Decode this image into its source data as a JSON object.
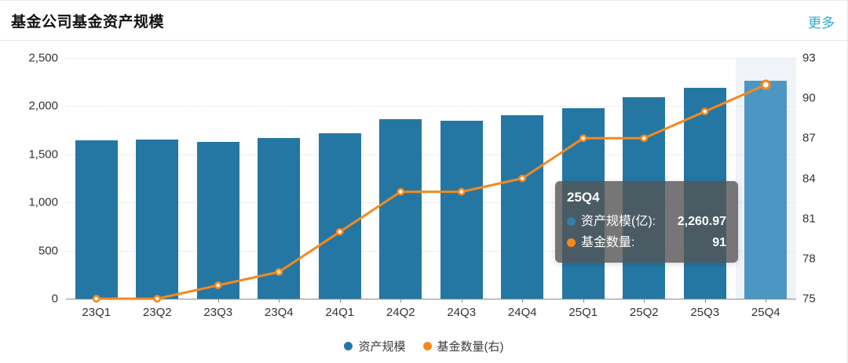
{
  "header": {
    "title": "基金公司基金资产规模",
    "more_label": "更多"
  },
  "chart_data": {
    "type": "bar",
    "subtype": "bar+line dual axis",
    "categories": [
      "23Q1",
      "23Q2",
      "23Q3",
      "23Q4",
      "24Q1",
      "24Q2",
      "24Q3",
      "24Q4",
      "25Q1",
      "25Q2",
      "25Q3",
      "25Q4"
    ],
    "series": [
      {
        "name": "资产规模",
        "type": "bar",
        "axis": "left",
        "unit": "亿",
        "values": [
          1645,
          1650,
          1632,
          1672,
          1716,
          1863,
          1852,
          1904,
          1981,
          2090,
          2191,
          2260.97
        ]
      },
      {
        "name": "基金数量(右)",
        "type": "line",
        "axis": "right",
        "values": [
          75,
          75,
          76,
          77,
          80,
          83,
          83,
          84,
          87,
          87,
          89,
          91
        ]
      }
    ],
    "left_axis": {
      "min": 0,
      "max": 2500,
      "tick_labels": [
        "0",
        "500",
        "1,000",
        "1,500",
        "2,000",
        "2,500"
      ]
    },
    "right_axis": {
      "min": 75,
      "max": 93,
      "tick_labels": [
        "75",
        "78",
        "81",
        "84",
        "87",
        "90",
        "93"
      ]
    },
    "highlighted_category": "25Q4",
    "grid": "horizontal dotted",
    "legend_position": "bottom"
  },
  "tooltip": {
    "title": "25Q4",
    "rows": [
      {
        "label": "资产规模(亿):",
        "value": "2,260.97",
        "color": "#2e7fad"
      },
      {
        "label": "基金数量:",
        "value": "91",
        "color": "#f5891d"
      }
    ]
  },
  "legend": {
    "items": [
      {
        "label": "资产规模",
        "color": "#2577a3"
      },
      {
        "label": "基金数量(右)",
        "color": "#f5891d"
      }
    ]
  },
  "colors": {
    "bar": "#2577a3",
    "bar_highlight": "#4c96c4",
    "line": "#f5891d",
    "marker_fill": "#ffffff",
    "hover_band": "#f0f4f9",
    "grid_line": "#d9ddef",
    "axis_line": "#8a8a8a",
    "axis_text": "#333333",
    "more_link": "#29abd4"
  }
}
